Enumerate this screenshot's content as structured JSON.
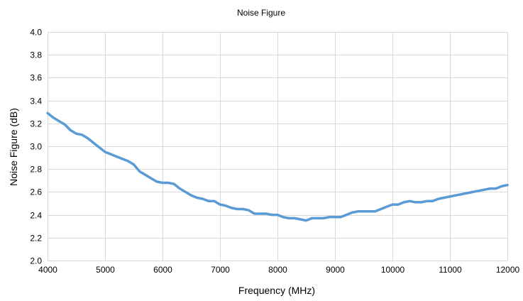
{
  "chart_data": {
    "type": "line",
    "title": "Noise Figure",
    "xlabel": "Frequency (MHz)",
    "ylabel": "Noise Figure (dB)",
    "xlim": [
      4000,
      12000
    ],
    "ylim": [
      2.0,
      4.0
    ],
    "x_ticks": [
      4000,
      5000,
      6000,
      7000,
      8000,
      9000,
      10000,
      11000,
      12000
    ],
    "y_ticks": [
      "2.0",
      "2.2",
      "2.4",
      "2.6",
      "2.8",
      "3.0",
      "3.2",
      "3.4",
      "3.6",
      "3.8",
      "4.0"
    ],
    "grid": true,
    "legend": "none",
    "series": [
      {
        "color": "#5b9bd5",
        "x": [
          4000,
          4100,
          4200,
          4300,
          4400,
          4500,
          4600,
          4700,
          4800,
          4900,
          5000,
          5100,
          5200,
          5300,
          5400,
          5500,
          5600,
          5700,
          5800,
          5900,
          6000,
          6100,
          6200,
          6300,
          6400,
          6500,
          6600,
          6700,
          6800,
          6900,
          7000,
          7100,
          7200,
          7300,
          7400,
          7500,
          7600,
          7700,
          7800,
          7900,
          8000,
          8100,
          8200,
          8300,
          8400,
          8500,
          8600,
          8700,
          8800,
          8900,
          9000,
          9100,
          9200,
          9300,
          9400,
          9500,
          9600,
          9700,
          9800,
          9900,
          10000,
          10100,
          10200,
          10300,
          10400,
          10500,
          10600,
          10700,
          10800,
          10900,
          11000,
          11100,
          11200,
          11300,
          11400,
          11500,
          11600,
          11700,
          11800,
          11900,
          12000
        ],
        "y": [
          3.29,
          3.25,
          3.22,
          3.19,
          3.14,
          3.11,
          3.1,
          3.07,
          3.03,
          2.99,
          2.95,
          2.93,
          2.91,
          2.89,
          2.87,
          2.84,
          2.78,
          2.75,
          2.72,
          2.69,
          2.68,
          2.68,
          2.67,
          2.63,
          2.6,
          2.57,
          2.55,
          2.54,
          2.52,
          2.52,
          2.49,
          2.48,
          2.46,
          2.45,
          2.45,
          2.44,
          2.41,
          2.41,
          2.41,
          2.4,
          2.4,
          2.38,
          2.37,
          2.37,
          2.36,
          2.35,
          2.37,
          2.37,
          2.37,
          2.38,
          2.38,
          2.38,
          2.4,
          2.42,
          2.43,
          2.43,
          2.43,
          2.43,
          2.45,
          2.47,
          2.49,
          2.49,
          2.51,
          2.52,
          2.51,
          2.51,
          2.52,
          2.52,
          2.54,
          2.55,
          2.56,
          2.57,
          2.58,
          2.59,
          2.6,
          2.61,
          2.62,
          2.63,
          2.63,
          2.65,
          2.66
        ]
      }
    ]
  }
}
